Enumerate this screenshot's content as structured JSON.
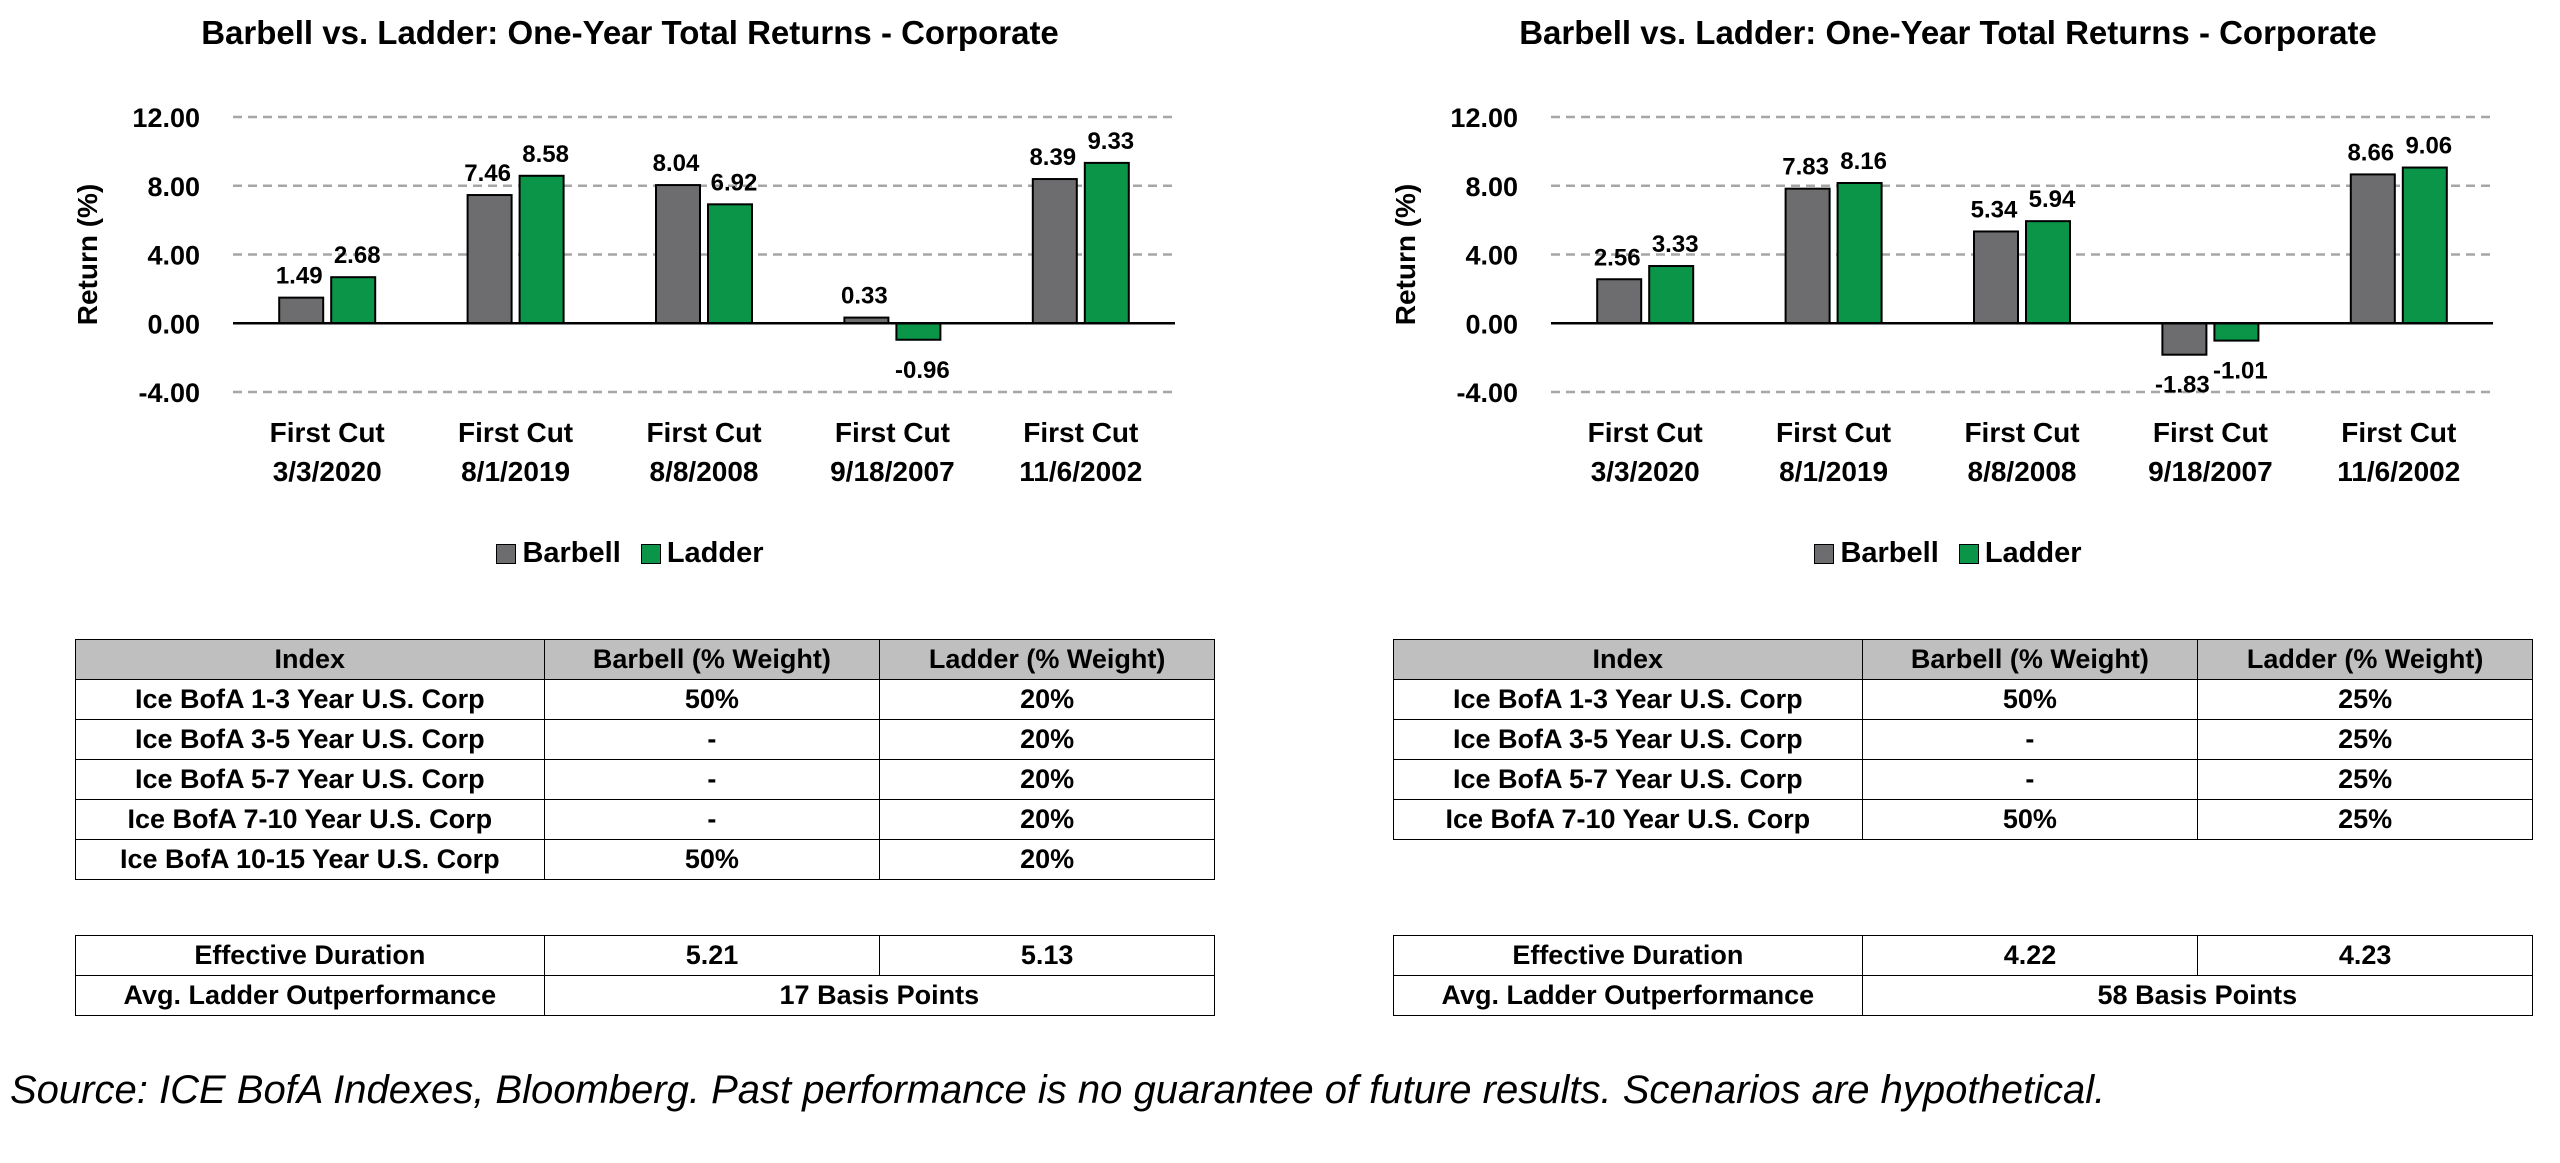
{
  "colors": {
    "barbell": "#6d6d6f",
    "ladder": "#0a9548",
    "grid": "#a6a6a6"
  },
  "legend": {
    "barbell": "Barbell",
    "ladder": "Ladder"
  },
  "chart_data": [
    {
      "type": "bar",
      "title": "Barbell vs. Ladder: One-Year Total Returns - Corporate",
      "ylabel": "Return (%)",
      "xlabel": "",
      "ylim": [
        -4,
        12
      ],
      "yticks": [
        "12.00",
        "8.00",
        "4.00",
        "0.00",
        "-4.00"
      ],
      "ytick_values": [
        12,
        8,
        4,
        0,
        -4
      ],
      "grid": true,
      "legend_position": "bottom",
      "categories": [
        [
          "First Cut",
          "3/3/2020"
        ],
        [
          "First Cut",
          "8/1/2019"
        ],
        [
          "First Cut",
          "8/8/2008"
        ],
        [
          "First Cut",
          "9/18/2007"
        ],
        [
          "First Cut",
          "11/6/2002"
        ]
      ],
      "series": [
        {
          "name": "Barbell",
          "values": [
            1.49,
            7.46,
            8.04,
            0.33,
            8.39
          ]
        },
        {
          "name": "Ladder",
          "values": [
            2.68,
            8.58,
            6.92,
            -0.96,
            9.33
          ]
        }
      ]
    },
    {
      "type": "bar",
      "title": "Barbell vs. Ladder: One-Year Total Returns - Corporate",
      "ylabel": "Return (%)",
      "xlabel": "",
      "ylim": [
        -4,
        12
      ],
      "yticks": [
        "12.00",
        "8.00",
        "4.00",
        "0.00",
        "-4.00"
      ],
      "ytick_values": [
        12,
        8,
        4,
        0,
        -4
      ],
      "grid": true,
      "legend_position": "bottom",
      "categories": [
        [
          "First Cut",
          "3/3/2020"
        ],
        [
          "First Cut",
          "8/1/2019"
        ],
        [
          "First Cut",
          "8/8/2008"
        ],
        [
          "First Cut",
          "9/18/2007"
        ],
        [
          "First Cut",
          "11/6/2002"
        ]
      ],
      "series": [
        {
          "name": "Barbell",
          "values": [
            2.56,
            7.83,
            5.34,
            -1.83,
            8.66
          ]
        },
        {
          "name": "Ladder",
          "values": [
            3.33,
            8.16,
            5.94,
            -1.01,
            9.06
          ]
        }
      ]
    }
  ],
  "tables": [
    {
      "headers": [
        "Index",
        "Barbell (% Weight)",
        "Ladder (% Weight)"
      ],
      "rows": [
        [
          "Ice BofA 1-3 Year U.S. Corp",
          "50%",
          "20%"
        ],
        [
          "Ice BofA 3-5 Year U.S. Corp",
          "-",
          "20%"
        ],
        [
          "Ice BofA 5-7 Year U.S. Corp",
          "-",
          "20%"
        ],
        [
          "Ice BofA 7-10 Year U.S. Corp",
          "-",
          "20%"
        ],
        [
          "Ice BofA 10-15 Year U.S. Corp",
          "50%",
          "20%"
        ]
      ],
      "duration": {
        "label": "Effective Duration",
        "barbell": "5.21",
        "ladder": "5.13"
      },
      "outperformance": {
        "label": "Avg. Ladder Outperformance",
        "value": "17 Basis Points"
      }
    },
    {
      "headers": [
        "Index",
        "Barbell (% Weight)",
        "Ladder (% Weight)"
      ],
      "rows": [
        [
          "Ice BofA 1-3 Year U.S. Corp",
          "50%",
          "25%"
        ],
        [
          "Ice BofA 3-5 Year U.S. Corp",
          "-",
          "25%"
        ],
        [
          "Ice BofA 5-7 Year U.S. Corp",
          "-",
          "25%"
        ],
        [
          "Ice BofA 7-10 Year U.S. Corp",
          "50%",
          "25%"
        ]
      ],
      "duration": {
        "label": "Effective Duration",
        "barbell": "4.22",
        "ladder": "4.23"
      },
      "outperformance": {
        "label": "Avg. Ladder Outperformance",
        "value": "58 Basis Points"
      }
    }
  ],
  "source": "Source: ICE BofA Indexes, Bloomberg. Past performance is no guarantee of future results. Scenarios are hypothetical."
}
